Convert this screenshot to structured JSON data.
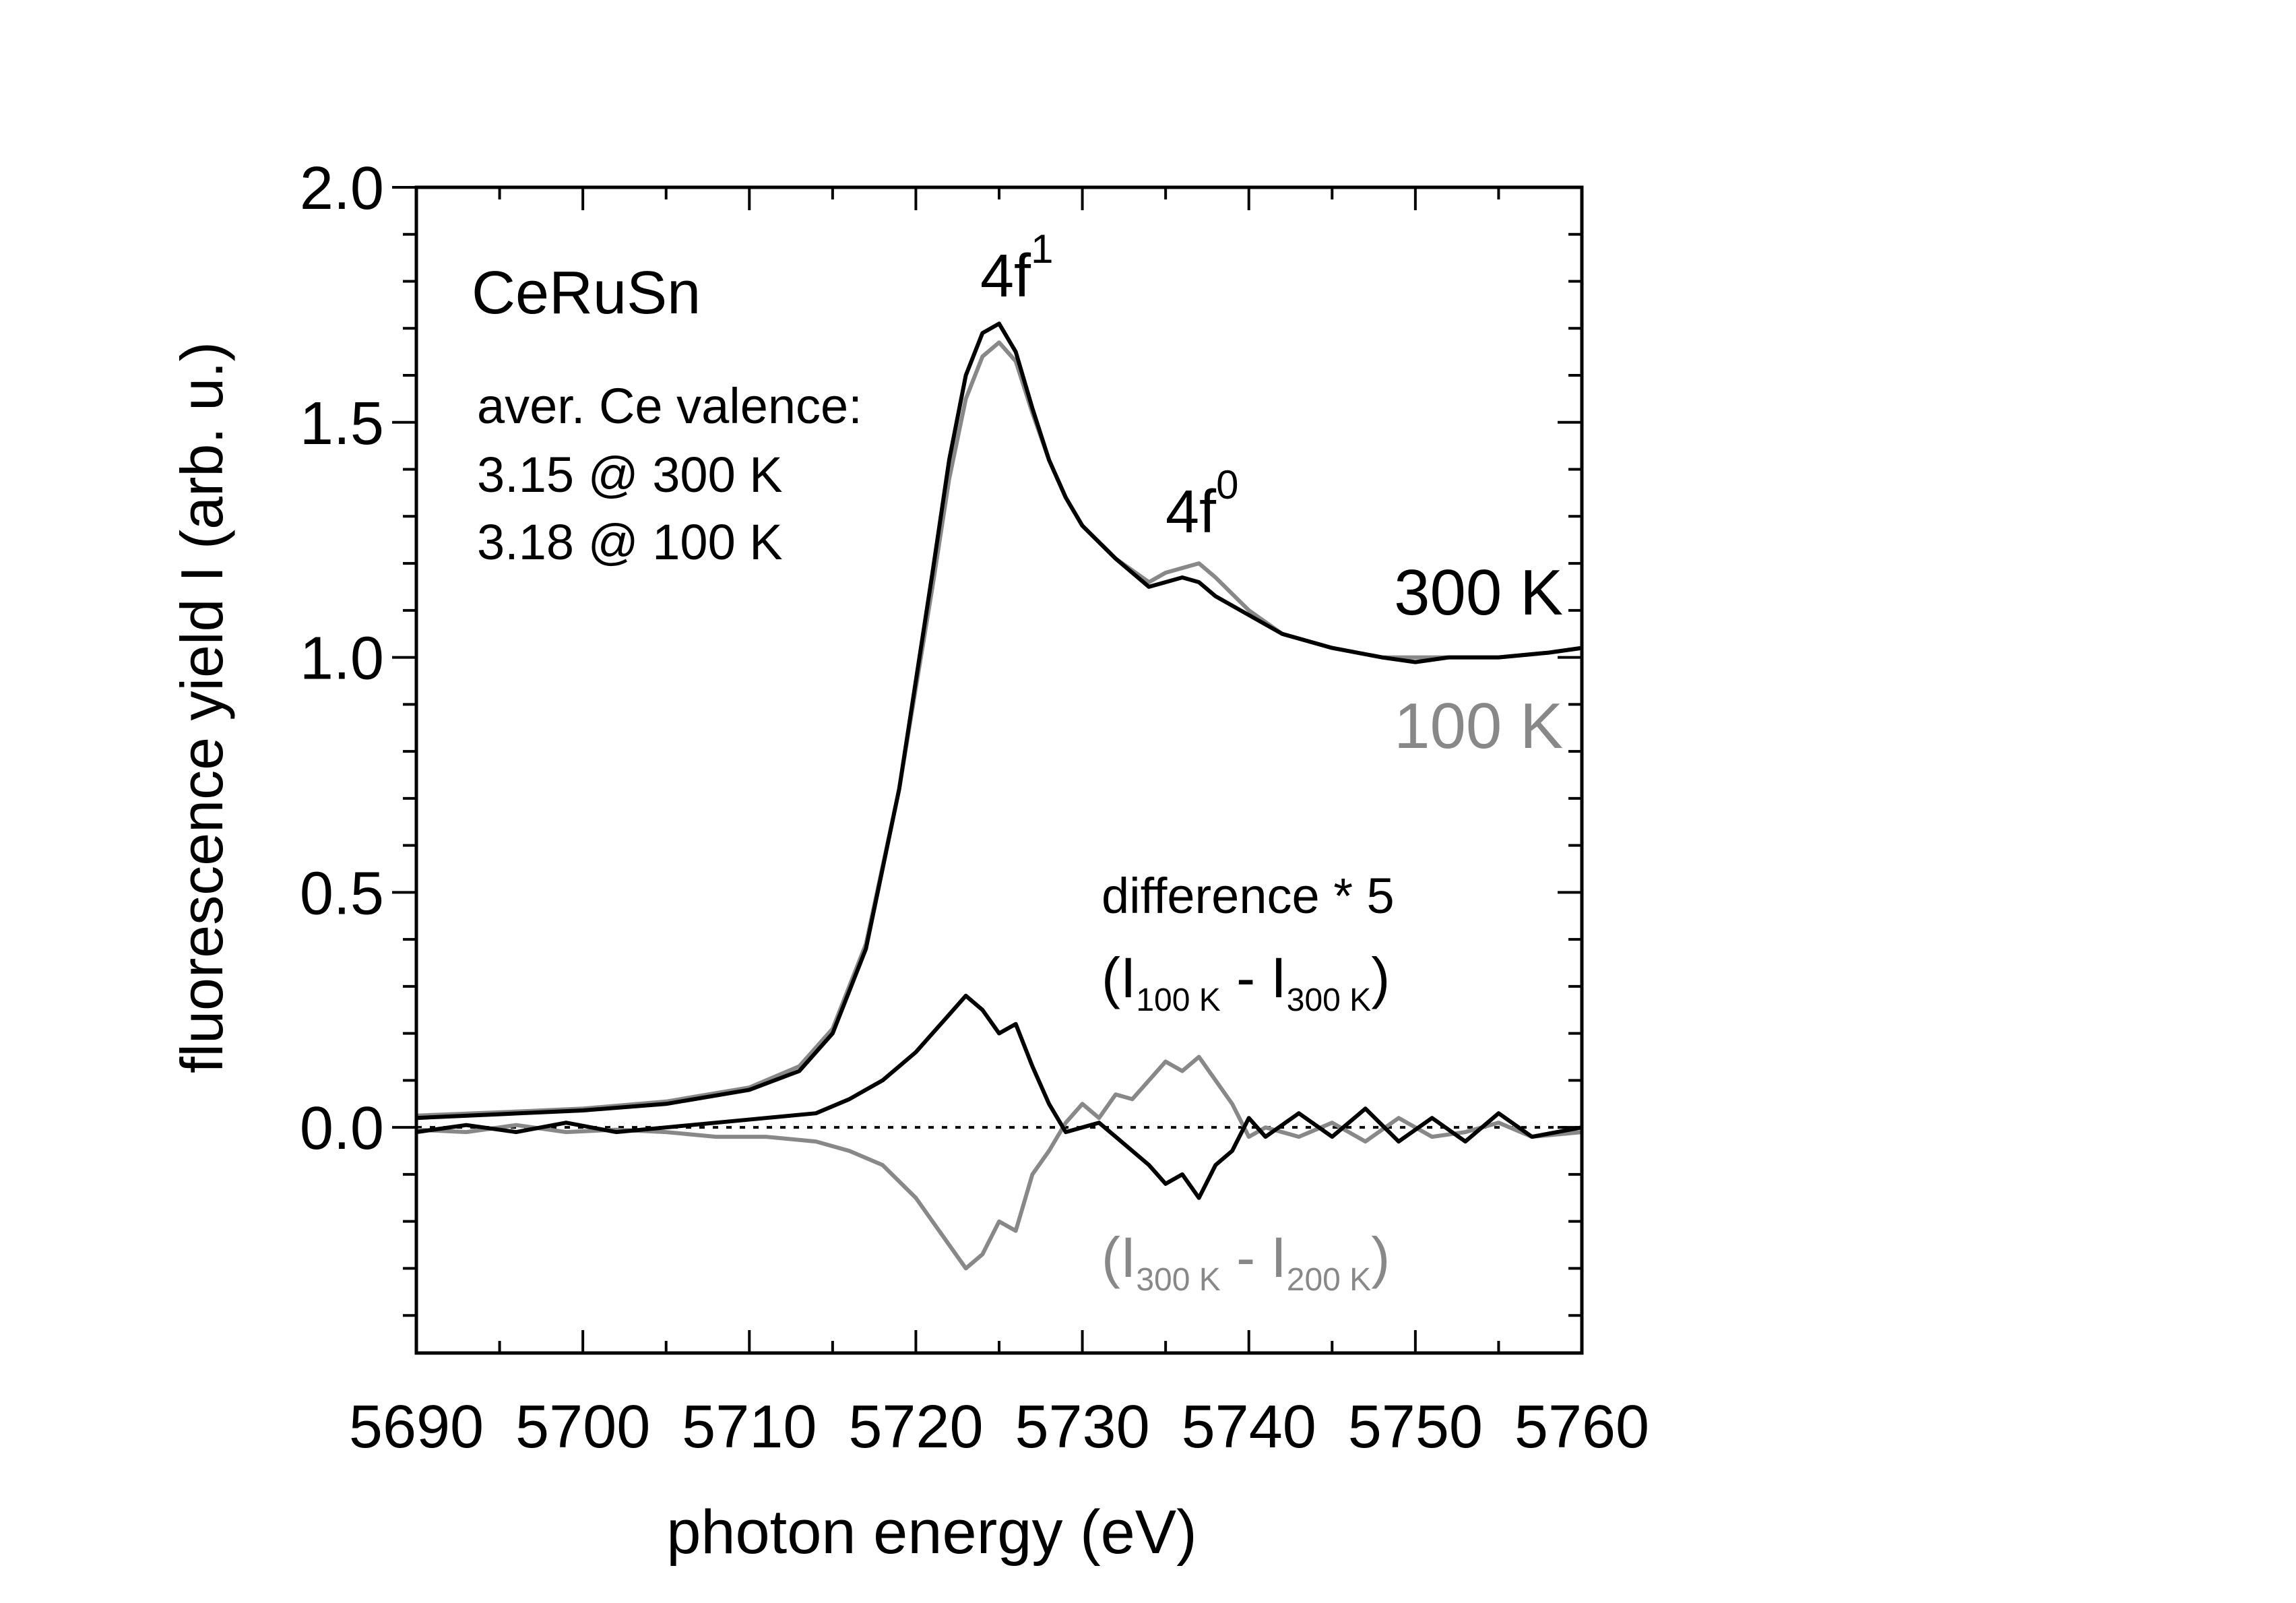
{
  "chart_data": {
    "type": "line",
    "title": "",
    "xlabel": "photon energy (eV)",
    "ylabel": "fluorescence yield I (arb. u.)",
    "xlim": [
      5690,
      5760
    ],
    "ylim": [
      -0.48,
      2.0
    ],
    "x_ticks": [
      "5690",
      "5700",
      "5710",
      "5720",
      "5730",
      "5740",
      "5750",
      "5760"
    ],
    "y_ticks": [
      "0.0",
      "0.5",
      "1.0",
      "1.5",
      "2.0"
    ],
    "sample_label": "CeRuSn",
    "valence_lines": [
      "aver. Ce valence:",
      "3.15 @ 300 K",
      "3.18 @ 100 K"
    ],
    "peak_labels": [
      {
        "base": "4f",
        "sup": "1"
      },
      {
        "base": "4f",
        "sup": "0"
      }
    ],
    "series_labels": [
      "300 K",
      "100 K"
    ],
    "difference_label": "difference * 5",
    "diff_label_1": {
      "open": "(I",
      "sub1": "100 K",
      "mid": " - I",
      "sub2": "300 K",
      "close": ")"
    },
    "diff_label_2": {
      "open": "(I",
      "sub1": "300 K",
      "mid": " - I",
      "sub2": "200 K",
      "close": ")"
    },
    "colors": {
      "black": "#000000",
      "gray": "#888888",
      "axis": "#000000"
    },
    "series": [
      {
        "name": "300 K",
        "color": "#000000",
        "x": [
          5690,
          5695,
          5700,
          5705,
          5710,
          5713,
          5715,
          5717,
          5719,
          5721,
          5722,
          5723,
          5724,
          5725,
          5726,
          5727,
          5728,
          5729,
          5730,
          5732,
          5734,
          5735,
          5736,
          5737,
          5738,
          5740,
          5742,
          5745,
          5748,
          5750,
          5752,
          5755,
          5758,
          5760
        ],
        "y": [
          0.02,
          0.028,
          0.036,
          0.05,
          0.08,
          0.12,
          0.2,
          0.38,
          0.72,
          1.18,
          1.42,
          1.6,
          1.69,
          1.71,
          1.65,
          1.53,
          1.42,
          1.34,
          1.28,
          1.21,
          1.15,
          1.16,
          1.17,
          1.16,
          1.13,
          1.09,
          1.05,
          1.02,
          1.0,
          0.99,
          1.0,
          1.0,
          1.01,
          1.02
        ]
      },
      {
        "name": "100 K",
        "color": "#888888",
        "x": [
          5690,
          5695,
          5700,
          5705,
          5710,
          5713,
          5715,
          5717,
          5719,
          5721,
          5722,
          5723,
          5724,
          5725,
          5726,
          5727,
          5728,
          5729,
          5730,
          5732,
          5734,
          5735,
          5736,
          5737,
          5738,
          5740,
          5742,
          5745,
          5748,
          5750,
          5752,
          5755,
          5758,
          5760
        ],
        "y": [
          0.025,
          0.032,
          0.04,
          0.055,
          0.085,
          0.13,
          0.21,
          0.39,
          0.72,
          1.15,
          1.38,
          1.55,
          1.64,
          1.67,
          1.63,
          1.52,
          1.42,
          1.34,
          1.28,
          1.21,
          1.16,
          1.18,
          1.19,
          1.2,
          1.17,
          1.1,
          1.05,
          1.02,
          1.0,
          1.0,
          1.0,
          1.0,
          1.01,
          1.02
        ]
      },
      {
        "name": "difference (I100 K - I300 K) * 5",
        "color": "#000000",
        "x": [
          5690,
          5693,
          5696,
          5699,
          5702,
          5705,
          5708,
          5711,
          5714,
          5716,
          5718,
          5720,
          5721,
          5722,
          5723,
          5724,
          5725,
          5726,
          5727,
          5728,
          5729,
          5730,
          5731,
          5732,
          5733,
          5734,
          5735,
          5736,
          5737,
          5738,
          5739,
          5740,
          5741,
          5743,
          5745,
          5747,
          5749,
          5751,
          5753,
          5755,
          5757,
          5760
        ],
        "y": [
          -0.01,
          0.005,
          -0.01,
          0.01,
          -0.01,
          0.0,
          0.01,
          0.02,
          0.03,
          0.06,
          0.1,
          0.16,
          0.2,
          0.24,
          0.28,
          0.25,
          0.2,
          0.22,
          0.13,
          0.05,
          -0.01,
          0.0,
          0.01,
          -0.02,
          -0.05,
          -0.08,
          -0.12,
          -0.1,
          -0.15,
          -0.08,
          -0.05,
          0.02,
          -0.02,
          0.03,
          -0.02,
          0.04,
          -0.03,
          0.02,
          -0.03,
          0.03,
          -0.02,
          0.0
        ]
      },
      {
        "name": "difference (I300 K - I200 K) * 5",
        "color": "#888888",
        "x": [
          5690,
          5693,
          5696,
          5699,
          5702,
          5705,
          5708,
          5711,
          5714,
          5716,
          5718,
          5720,
          5721,
          5722,
          5723,
          5724,
          5725,
          5726,
          5727,
          5728,
          5729,
          5730,
          5731,
          5732,
          5733,
          5734,
          5735,
          5736,
          5737,
          5738,
          5739,
          5740,
          5741,
          5743,
          5745,
          5747,
          5749,
          5751,
          5753,
          5755,
          5757,
          5760
        ],
        "y": [
          -0.005,
          -0.01,
          0.005,
          -0.01,
          -0.005,
          -0.01,
          -0.02,
          -0.02,
          -0.03,
          -0.05,
          -0.08,
          -0.15,
          -0.2,
          -0.25,
          -0.3,
          -0.27,
          -0.2,
          -0.22,
          -0.1,
          -0.05,
          0.01,
          0.05,
          0.02,
          0.07,
          0.06,
          0.1,
          0.14,
          0.12,
          0.15,
          0.1,
          0.05,
          -0.02,
          0.0,
          -0.02,
          0.01,
          -0.03,
          0.02,
          -0.02,
          -0.01,
          0.01,
          -0.02,
          -0.01
        ]
      }
    ]
  }
}
